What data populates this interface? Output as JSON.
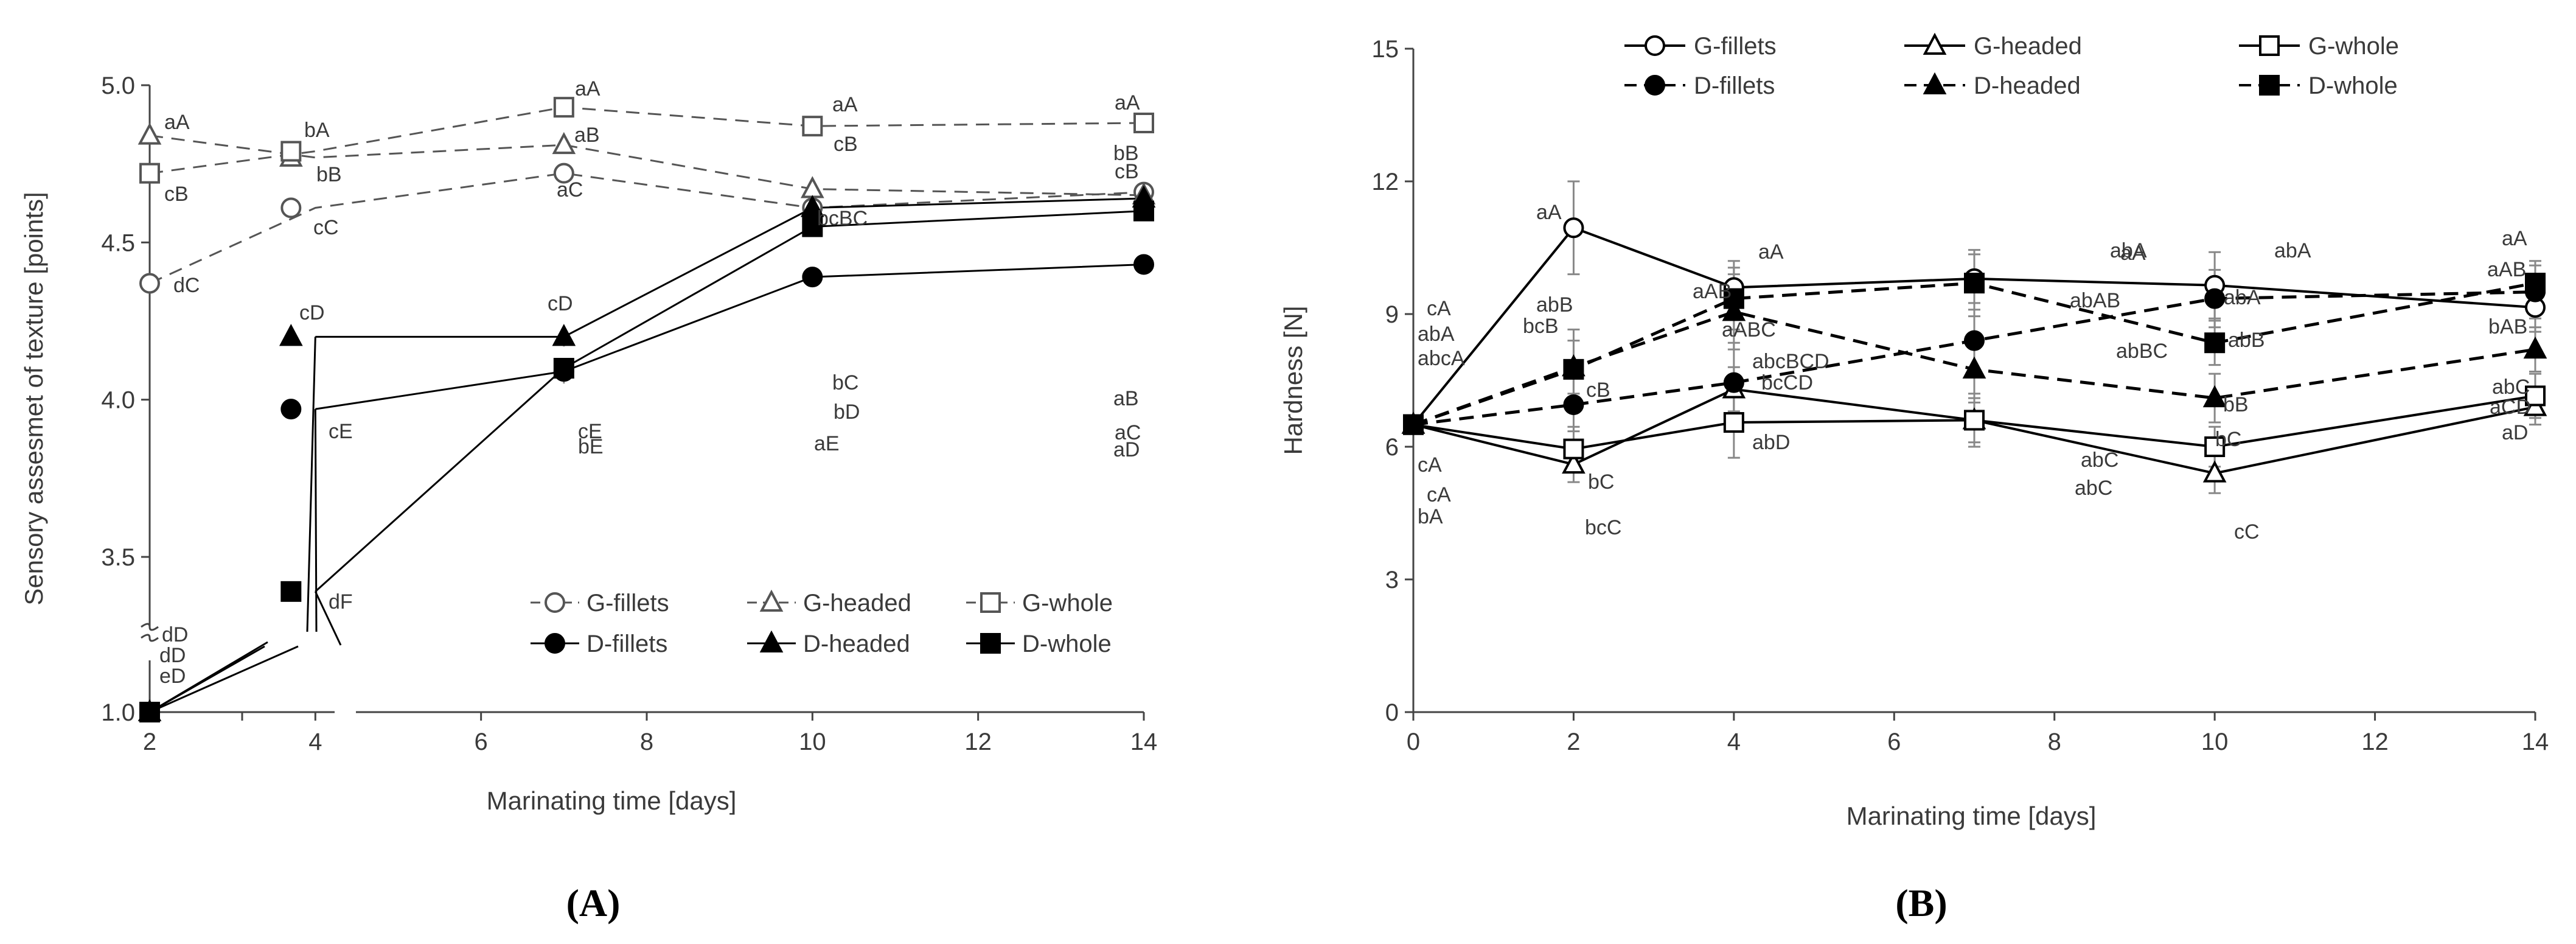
{
  "chart_data": [
    {
      "type": "line",
      "panel_label": "(A)",
      "xlabel": "Marinating time [days]",
      "ylabel": "Sensory assesmet of texture [points]",
      "x_ticks": [
        "2",
        "4",
        "6",
        "8",
        "10",
        "12",
        "14"
      ],
      "y_ticks": [
        "1.0",
        "3.5",
        "4.0",
        "4.5",
        "5.0"
      ],
      "x_range": [
        2,
        14
      ],
      "y_range": [
        1.0,
        5.0
      ],
      "y_axis_break": "between 1.0 and 3.5",
      "legend": [
        "G-fillets",
        "G-headed",
        "G-whole",
        "D-fillets",
        "D-headed",
        "D-whole"
      ],
      "legend_position": "bottom-right",
      "series": [
        {
          "name": "G-fillets",
          "x": [
            2,
            4,
            7,
            10,
            14
          ],
          "values": [
            4.37,
            4.61,
            4.72,
            4.61,
            4.66
          ],
          "labels": [
            "dC",
            "cC",
            "aC",
            "bcBC",
            "bB"
          ],
          "color": "#555555",
          "dash": "dashed",
          "marker": "circle-open"
        },
        {
          "name": "G-headed",
          "x": [
            2,
            4,
            7,
            10,
            14
          ],
          "values": [
            4.84,
            4.77,
            4.81,
            4.67,
            4.65
          ],
          "labels": [
            "aA",
            "bB",
            "aB",
            "cB",
            "cB"
          ],
          "color": "#555555",
          "dash": "dashed",
          "marker": "triangle-open"
        },
        {
          "name": "G-whole",
          "x": [
            2,
            4,
            7,
            10,
            14
          ],
          "values": [
            4.72,
            4.79,
            4.93,
            4.87,
            4.88
          ],
          "labels": [
            "cB",
            "bA",
            "aA",
            "aA",
            "aA"
          ],
          "color": "#555555",
          "dash": "dashed",
          "marker": "square-open"
        },
        {
          "name": "D-fillets",
          "x": [
            2,
            4,
            7,
            10,
            14
          ],
          "values": [
            1.0,
            3.97,
            4.09,
            4.39,
            4.43
          ],
          "labels": [
            "dD",
            "cE",
            "cE",
            "aE",
            "aD"
          ],
          "color": "#000000",
          "dash": "solid",
          "marker": "circle-filled"
        },
        {
          "name": "D-headed",
          "x": [
            2,
            4,
            7,
            10,
            14
          ],
          "values": [
            1.0,
            4.2,
            4.2,
            4.61,
            4.64
          ],
          "labels": [
            "dD",
            "cD",
            "cD",
            "bD",
            "aC"
          ],
          "color": "#000000",
          "dash": "solid",
          "marker": "triangle-filled"
        },
        {
          "name": "D-whole",
          "x": [
            2,
            4,
            7,
            10,
            14
          ],
          "values": [
            1.0,
            3.39,
            4.1,
            4.55,
            4.6
          ],
          "labels": [
            "eD",
            "dF",
            "bE",
            "bC",
            "aB"
          ],
          "color": "#000000",
          "dash": "solid",
          "marker": "square-filled"
        }
      ]
    },
    {
      "type": "line",
      "panel_label": "(B)",
      "xlabel": "Marinating time [days]",
      "ylabel": "Hardness [N]",
      "x_ticks": [
        "0",
        "2",
        "4",
        "6",
        "8",
        "10",
        "12",
        "14"
      ],
      "y_ticks": [
        "0",
        "3",
        "6",
        "9",
        "12",
        "15"
      ],
      "x_range": [
        0,
        14
      ],
      "y_range": [
        0,
        15
      ],
      "legend": [
        "G-fillets",
        "G-headed",
        "G-whole",
        "D-fillets",
        "D-headed",
        "D-whole"
      ],
      "legend_position": "top",
      "series": [
        {
          "name": "G-fillets",
          "x": [
            0,
            2,
            4,
            7,
            10,
            14
          ],
          "values": [
            6.5,
            10.95,
            9.6,
            9.8,
            9.65,
            9.15
          ],
          "errors": [
            0,
            1.05,
            0.6,
            0.55,
            0.75,
            0.55
          ],
          "labels": [
            "cA",
            "aA",
            "aA",
            "abA",
            "abA",
            "aA"
          ],
          "color": "#000000",
          "dash": "solid",
          "marker": "circle-open"
        },
        {
          "name": "G-headed",
          "x": [
            0,
            2,
            4,
            7,
            10,
            14
          ],
          "values": [
            6.5,
            5.6,
            7.3,
            6.6,
            5.4,
            6.9
          ],
          "errors": [
            0,
            0.4,
            0.5,
            0.5,
            0.45,
            0.4
          ],
          "labels": [
            "cA",
            "bcC",
            "abcBCD",
            "abC",
            "cC",
            "aD"
          ],
          "color": "#000000",
          "dash": "solid",
          "marker": "triangle-open"
        },
        {
          "name": "G-whole",
          "x": [
            0,
            2,
            4,
            7,
            10,
            14
          ],
          "values": [
            6.5,
            5.95,
            6.55,
            6.6,
            6.0,
            7.15
          ],
          "errors": [
            0,
            0.5,
            0.8,
            0.6,
            0.45,
            0.5
          ],
          "labels": [
            "bA",
            "bC",
            "abD",
            "abC",
            "bC",
            "aCD"
          ],
          "color": "#000000",
          "dash": "solid",
          "marker": "square-open"
        },
        {
          "name": "D-fillets",
          "x": [
            0,
            2,
            4,
            7,
            10,
            14
          ],
          "values": [
            6.5,
            6.95,
            7.45,
            8.4,
            9.35,
            9.5
          ],
          "errors": [
            0,
            0.6,
            0.9,
            0.7,
            0.65,
            0.6
          ],
          "labels": [
            "abA",
            "cB",
            "bcCD",
            "aA",
            "abA",
            "aAB"
          ],
          "color": "#000000",
          "dash": "dashed",
          "marker": "circle-filled"
        },
        {
          "name": "D-headed",
          "x": [
            0,
            2,
            4,
            7,
            10,
            14
          ],
          "values": [
            6.5,
            7.8,
            9.05,
            7.75,
            7.1,
            8.2
          ],
          "errors": [
            0,
            0.6,
            0.85,
            0.75,
            0.55,
            0.5
          ],
          "labels": [
            "abcA",
            "bcB",
            "aABC",
            "abBC",
            "bB",
            "abC"
          ],
          "color": "#000000",
          "dash": "dashed",
          "marker": "triangle-filled"
        },
        {
          "name": "D-whole",
          "x": [
            0,
            2,
            4,
            7,
            10,
            14
          ],
          "values": [
            6.5,
            7.75,
            9.35,
            9.7,
            8.35,
            9.7
          ],
          "errors": [
            0,
            0.9,
            0.7,
            0.75,
            0.5,
            0.5
          ],
          "labels": [
            "cA",
            "abB",
            "aAB",
            "abAB",
            "abB",
            "bAB"
          ],
          "color": "#000000",
          "dash": "dashed",
          "marker": "square-filled"
        }
      ]
    }
  ]
}
